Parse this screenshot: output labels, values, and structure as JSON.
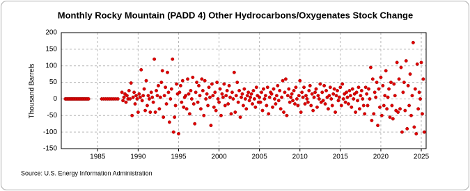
{
  "chart_data": {
    "type": "scatter",
    "title": "Monthly Rocky Mountain (PADD 4) Other Hydrocarbons/Oxygenates Stock Change",
    "y_label": "Thousand Barrels",
    "source": "Source: U.S. Energy Information Administration",
    "color": "#e00000",
    "grid": true,
    "xlim": [
      1980.5,
      2025.6
    ],
    "ylim": [
      -150,
      200
    ],
    "xticks": [
      1985,
      1990,
      1995,
      2000,
      2005,
      2010,
      2015,
      2020,
      2025
    ],
    "yticks": [
      -150,
      -100,
      -50,
      0,
      50,
      100,
      150,
      200
    ],
    "x": [
      1981,
      1981.125,
      1981.25,
      1981.375,
      1981.5,
      1981.625,
      1981.75,
      1981.875,
      1982,
      1982.125,
      1982.25,
      1982.375,
      1982.5,
      1982.625,
      1982.75,
      1982.875,
      1983,
      1983.125,
      1983.25,
      1983.375,
      1983.5,
      1983.625,
      1983.75,
      1983.875,
      1985.5,
      1985.75,
      1986,
      1986.25,
      1986.5,
      1986.75,
      1987,
      1987.25,
      1987.5,
      1988,
      1988.125,
      1988.25,
      1988.375,
      1988.5,
      1988.625,
      1988.75,
      1988.875,
      1989,
      1989.125,
      1989.25,
      1989.375,
      1989.5,
      1989.625,
      1989.75,
      1989.875,
      1990,
      1990.125,
      1990.25,
      1990.375,
      1990.5,
      1990.625,
      1990.75,
      1990.875,
      1991,
      1991.125,
      1991.25,
      1991.375,
      1991.5,
      1991.625,
      1991.75,
      1991.875,
      1992,
      1992.125,
      1992.25,
      1992.375,
      1992.5,
      1992.625,
      1992.75,
      1992.875,
      1993,
      1993.125,
      1993.25,
      1993.375,
      1993.5,
      1993.625,
      1993.75,
      1993.875,
      1994,
      1994.125,
      1994.25,
      1994.375,
      1994.5,
      1994.625,
      1994.75,
      1994.875,
      1995,
      1995.125,
      1995.25,
      1995.375,
      1995.5,
      1995.625,
      1995.75,
      1995.875,
      1996,
      1996.125,
      1996.25,
      1996.375,
      1996.5,
      1996.625,
      1996.75,
      1996.875,
      1997,
      1997.125,
      1997.25,
      1997.375,
      1997.5,
      1997.625,
      1997.75,
      1997.875,
      1998,
      1998.125,
      1998.25,
      1998.375,
      1998.5,
      1998.625,
      1998.75,
      1998.875,
      1999,
      1999.125,
      1999.25,
      1999.375,
      1999.5,
      1999.625,
      1999.75,
      1999.875,
      2000,
      2000.125,
      2000.25,
      2000.375,
      2000.5,
      2000.625,
      2000.75,
      2000.875,
      2001,
      2001.125,
      2001.25,
      2001.375,
      2001.5,
      2001.625,
      2001.75,
      2001.875,
      2002,
      2002.125,
      2002.25,
      2002.375,
      2002.5,
      2002.625,
      2002.75,
      2002.875,
      2003,
      2003.125,
      2003.25,
      2003.375,
      2003.5,
      2003.625,
      2003.75,
      2003.875,
      2004,
      2004.125,
      2004.25,
      2004.375,
      2004.5,
      2004.625,
      2004.75,
      2004.875,
      2005,
      2005.125,
      2005.25,
      2005.375,
      2005.5,
      2005.625,
      2005.75,
      2005.875,
      2006,
      2006.125,
      2006.25,
      2006.375,
      2006.5,
      2006.625,
      2006.75,
      2006.875,
      2007,
      2007.125,
      2007.25,
      2007.375,
      2007.5,
      2007.625,
      2007.75,
      2007.875,
      2008,
      2008.125,
      2008.25,
      2008.375,
      2008.5,
      2008.625,
      2008.75,
      2008.875,
      2009,
      2009.125,
      2009.25,
      2009.375,
      2009.5,
      2009.625,
      2009.75,
      2009.875,
      2010,
      2010.125,
      2010.25,
      2010.375,
      2010.5,
      2010.625,
      2010.75,
      2010.875,
      2011,
      2011.125,
      2011.25,
      2011.375,
      2011.5,
      2011.625,
      2011.75,
      2011.875,
      2012,
      2012.125,
      2012.25,
      2012.375,
      2012.5,
      2012.625,
      2012.75,
      2012.875,
      2013,
      2013.125,
      2013.25,
      2013.375,
      2013.5,
      2013.625,
      2013.75,
      2013.875,
      2014,
      2014.125,
      2014.25,
      2014.375,
      2014.5,
      2014.625,
      2014.75,
      2014.875,
      2015,
      2015.125,
      2015.25,
      2015.375,
      2015.5,
      2015.625,
      2015.75,
      2015.875,
      2016,
      2016.125,
      2016.25,
      2016.375,
      2016.5,
      2016.625,
      2016.75,
      2016.875,
      2017,
      2017.125,
      2017.25,
      2017.375,
      2017.5,
      2017.625,
      2017.75,
      2017.875,
      2018,
      2018.125,
      2018.25,
      2018.375,
      2018.5,
      2018.625,
      2018.75,
      2018.875,
      2019,
      2019.125,
      2019.25,
      2019.375,
      2019.5,
      2019.625,
      2019.75,
      2019.875,
      2020,
      2020.125,
      2020.25,
      2020.375,
      2020.5,
      2020.625,
      2020.75,
      2020.875,
      2021,
      2021.125,
      2021.25,
      2021.375,
      2021.5,
      2021.625,
      2021.75,
      2021.875,
      2022,
      2022.125,
      2022.25,
      2022.375,
      2022.5,
      2022.625,
      2022.75,
      2022.875,
      2023,
      2023.125,
      2023.25,
      2023.375,
      2023.5,
      2023.625,
      2023.75,
      2023.875,
      2024,
      2024.125,
      2024.25,
      2024.375,
      2024.5,
      2024.625,
      2024.75,
      2024.875,
      2025,
      2025.125,
      2025.25,
      2025.375
    ],
    "values": [
      0,
      0,
      0,
      0,
      0,
      0,
      0,
      0,
      0,
      0,
      0,
      0,
      0,
      0,
      0,
      0,
      0,
      0,
      0,
      0,
      0,
      0,
      0,
      0,
      0,
      0,
      0,
      0,
      0,
      0,
      0,
      0,
      0,
      20,
      -5,
      5,
      15,
      -10,
      10,
      0,
      25,
      0,
      48,
      -50,
      5,
      20,
      -15,
      10,
      0,
      -40,
      15,
      5,
      88,
      -5,
      10,
      30,
      -35,
      55,
      -20,
      10,
      0,
      -40,
      20,
      5,
      -10,
      120,
      -40,
      25,
      10,
      40,
      -30,
      5,
      50,
      85,
      -55,
      10,
      35,
      -15,
      80,
      20,
      -70,
      0,
      30,
      120,
      -100,
      -55,
      -20,
      45,
      15,
      -105,
      20,
      40,
      -10,
      55,
      -25,
      5,
      10,
      -30,
      60,
      15,
      -45,
      25,
      0,
      65,
      -15,
      -75,
      20,
      50,
      -10,
      40,
      10,
      -30,
      60,
      25,
      -50,
      55,
      0,
      15,
      -20,
      35,
      5,
      -80,
      45,
      10,
      -25,
      20,
      -35,
      50,
      0,
      -10,
      30,
      -50,
      15,
      5,
      45,
      -20,
      10,
      25,
      -15,
      40,
      5,
      -45,
      20,
      0,
      80,
      -40,
      10,
      50,
      -10,
      25,
      -55,
      5,
      15,
      -20,
      30,
      0,
      -30,
      10,
      20,
      -5,
      5,
      15,
      -15,
      25,
      0,
      -25,
      35,
      10,
      -10,
      5,
      -10,
      20,
      -35,
      30,
      0,
      10,
      -20,
      35,
      -45,
      5,
      20,
      15,
      -25,
      30,
      0,
      -15,
      10,
      40,
      -5,
      25,
      -30,
      5,
      55,
      -40,
      20,
      60,
      -50,
      10,
      30,
      -10,
      5,
      15,
      -5,
      25,
      -15,
      35,
      0,
      -20,
      10,
      55,
      -40,
      20,
      5,
      35,
      -15,
      10,
      0,
      -10,
      25,
      40,
      -20,
      15,
      -35,
      5,
      20,
      30,
      -25,
      10,
      0,
      45,
      -10,
      20,
      -5,
      40,
      -15,
      25,
      5,
      -30,
      10,
      35,
      0,
      -20,
      15,
      30,
      -40,
      10,
      25,
      -5,
      5,
      35,
      -20,
      45,
      0,
      15,
      -10,
      20,
      5,
      -15,
      25,
      10,
      -25,
      30,
      0,
      15,
      -40,
      20,
      -5,
      35,
      -30,
      10,
      25,
      0,
      -20,
      -45,
      35,
      15,
      -20,
      30,
      0,
      95,
      -65,
      60,
      -45,
      20,
      5,
      50,
      -80,
      30,
      -25,
      65,
      -50,
      40,
      -20,
      10,
      85,
      -30,
      5,
      30,
      -55,
      50,
      -20,
      -60,
      45,
      10,
      -35,
      110,
      -40,
      60,
      -30,
      95,
      -100,
      20,
      50,
      -35,
      115,
      -90,
      40,
      -20,
      75,
      -50,
      10,
      170,
      -85,
      30,
      -105,
      105,
      -30,
      20,
      0,
      110,
      -45,
      60,
      -100
    ]
  }
}
